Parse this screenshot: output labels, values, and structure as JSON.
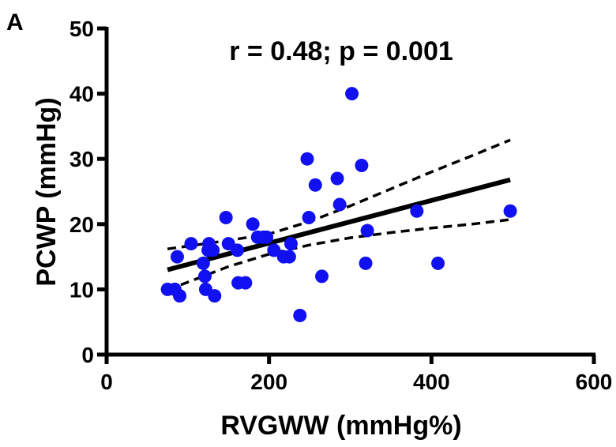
{
  "panel_label": "A",
  "chart_data": {
    "type": "scatter",
    "title": "r = 0.48; p = 0.001",
    "xlabel": "RVGWW (mmHg%)",
    "ylabel": "PCWP (mmHg)",
    "xlim": [
      0,
      600
    ],
    "ylim": [
      0,
      50
    ],
    "xticks": [
      0,
      200,
      400,
      600
    ],
    "yticks": [
      0,
      10,
      20,
      30,
      40,
      50
    ],
    "grid": false,
    "point_color": "#1010f0",
    "line_color": "#000000",
    "points": [
      {
        "x": 75,
        "y": 10
      },
      {
        "x": 84,
        "y": 10
      },
      {
        "x": 87,
        "y": 15
      },
      {
        "x": 90,
        "y": 9
      },
      {
        "x": 104,
        "y": 17
      },
      {
        "x": 119,
        "y": 14
      },
      {
        "x": 121,
        "y": 12
      },
      {
        "x": 122,
        "y": 10
      },
      {
        "x": 125,
        "y": 16
      },
      {
        "x": 126,
        "y": 17
      },
      {
        "x": 131,
        "y": 16
      },
      {
        "x": 133,
        "y": 9
      },
      {
        "x": 147,
        "y": 21
      },
      {
        "x": 150,
        "y": 17
      },
      {
        "x": 161,
        "y": 16
      },
      {
        "x": 162,
        "y": 11
      },
      {
        "x": 171,
        "y": 11
      },
      {
        "x": 180,
        "y": 20
      },
      {
        "x": 186,
        "y": 18
      },
      {
        "x": 193,
        "y": 18
      },
      {
        "x": 197,
        "y": 18
      },
      {
        "x": 206,
        "y": 16
      },
      {
        "x": 218,
        "y": 15
      },
      {
        "x": 225,
        "y": 15
      },
      {
        "x": 227,
        "y": 17
      },
      {
        "x": 238,
        "y": 6
      },
      {
        "x": 247,
        "y": 30
      },
      {
        "x": 249,
        "y": 21
      },
      {
        "x": 257,
        "y": 26
      },
      {
        "x": 265,
        "y": 12
      },
      {
        "x": 284,
        "y": 27
      },
      {
        "x": 287,
        "y": 23
      },
      {
        "x": 302,
        "y": 40
      },
      {
        "x": 314,
        "y": 29
      },
      {
        "x": 319,
        "y": 14
      },
      {
        "x": 321,
        "y": 19
      },
      {
        "x": 382,
        "y": 22
      },
      {
        "x": 408,
        "y": 14
      },
      {
        "x": 497,
        "y": 22
      }
    ],
    "regression": {
      "x": [
        75,
        497
      ],
      "y": [
        13.0,
        26.8
      ]
    },
    "ci_upper": {
      "x": [
        75,
        150,
        200,
        250,
        300,
        350,
        400,
        450,
        497
      ],
      "y": [
        16.2,
        17.5,
        18.5,
        20.4,
        22.8,
        25.4,
        28.0,
        30.5,
        32.9
      ]
    },
    "ci_lower": {
      "x": [
        75,
        150,
        200,
        250,
        300,
        350,
        400,
        450,
        497
      ],
      "y": [
        9.9,
        13.5,
        15.4,
        16.8,
        17.9,
        18.7,
        19.4,
        20.0,
        20.7
      ]
    }
  }
}
